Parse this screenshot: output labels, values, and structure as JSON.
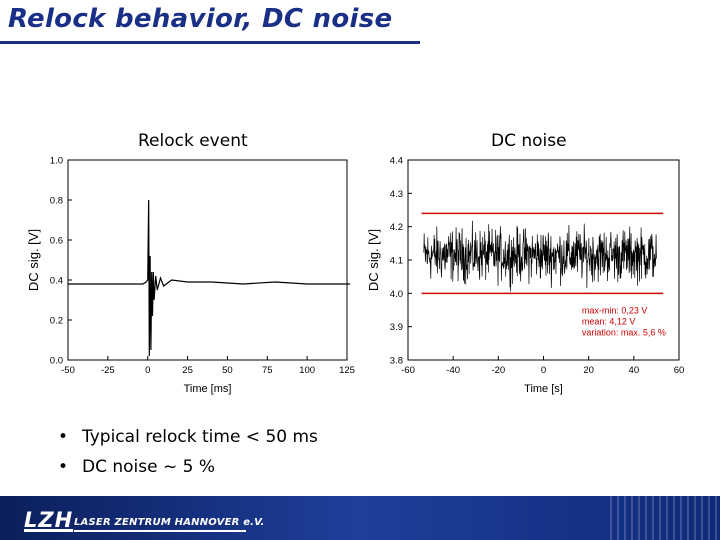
{
  "header": {
    "title": "Relock behavior, DC noise"
  },
  "bullets": [
    "Typical relock time < 50 ms",
    "DC noise ~ 5 %"
  ],
  "footer": {
    "logo_mark": "LZH",
    "logo_text": "LASER ZENTRUM HANNOVER e.V."
  },
  "chart_data": [
    {
      "type": "line",
      "title": "Relock event",
      "xlabel": "Time [ms]",
      "ylabel": "DC sig. [V]",
      "xlim": [
        -50,
        125
      ],
      "ylim": [
        0.0,
        1.0
      ],
      "xticks": [
        "-50",
        "-25",
        "0",
        "25",
        "50",
        "75",
        "100",
        "125"
      ],
      "yticks": [
        "0.0",
        "0.2",
        "0.4",
        "0.6",
        "0.8",
        "1.0"
      ],
      "grid": false,
      "line_color": "#000000",
      "series": [
        {
          "x": [
            -50,
            -30,
            -10,
            -3,
            -1,
            0,
            0.6,
            1.0,
            1.5,
            2.0,
            2.5,
            3.0,
            3.5,
            4.0,
            5,
            6,
            8,
            10,
            15,
            25,
            40,
            60,
            80,
            100,
            120,
            127
          ],
          "y": [
            0.38,
            0.38,
            0.38,
            0.38,
            0.39,
            0.4,
            0.8,
            0.02,
            0.52,
            0.05,
            0.44,
            0.22,
            0.44,
            0.3,
            0.42,
            0.35,
            0.41,
            0.37,
            0.4,
            0.39,
            0.39,
            0.38,
            0.39,
            0.38,
            0.38,
            0.38
          ]
        }
      ]
    },
    {
      "type": "line",
      "title": "DC noise",
      "xlabel": "Time [s]",
      "ylabel": "DC sig. [V]",
      "xlim": [
        -60,
        60
      ],
      "ylim": [
        3.8,
        4.4
      ],
      "xticks": [
        "-60",
        "-40",
        "-20",
        "0",
        "20",
        "40",
        "60"
      ],
      "yticks": [
        "3.8",
        "3.9",
        "4.0",
        "4.1",
        "4.2",
        "4.3",
        "4.4"
      ],
      "grid": false,
      "line_color": "#000000",
      "series": [
        {
          "x_range": [
            -53,
            50
          ],
          "mean": 4.12,
          "min": 4.0,
          "max": 4.23
        }
      ],
      "hlines": [
        {
          "y": 4.24,
          "color": "#cc0000"
        },
        {
          "y": 4.0,
          "color": "#cc0000"
        }
      ],
      "annotations": [
        "max-min: 0,23 V",
        "mean: 4,12 V",
        "variation: max. 5,6 %"
      ],
      "annotation_color": "#cc0000"
    }
  ]
}
